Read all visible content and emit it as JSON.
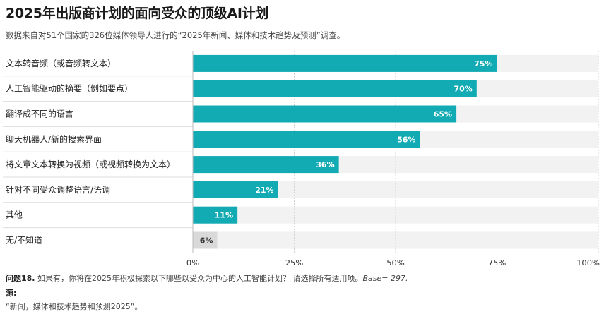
{
  "title": "2025年出版商计划的面向受众的顶级AI计划",
  "subtitle": "数据来自对51个国家的326位媒体领导人进行的“2025年新闻、媒体和技术趋势及预测”调查。",
  "footer": {
    "question_label": "问题18.",
    "question_text": " 如果有，你将在2025年积极探索以下哪些以受众为中心的人工智能计划？ 请选择所有适用项。",
    "base_text": "Base= 297.",
    "source_label": "源:",
    "source_text": "“新闻，媒体和技术趋势和预测2025”。"
  },
  "colors": {
    "bar": "#12abb4",
    "bar_light": "#d9d9d9",
    "bg_band": "#f2f2f2",
    "grid": "#d0d0d0"
  },
  "chart_data": {
    "type": "bar",
    "orientation": "horizontal",
    "categories": [
      "文本转音频（或音频转文本）",
      "人工智能驱动的摘要（例如要点）",
      "翻译成不同的语言",
      "聊天机器人/新的搜索界面",
      "将文章文本转换为视频（或视频转换为文本）",
      "针对不同受众调整语言/语调",
      "其他",
      "无/不知道"
    ],
    "values": [
      75,
      70,
      65,
      56,
      36,
      21,
      11,
      6
    ],
    "value_labels": [
      "75%",
      "70%",
      "65%",
      "56%",
      "36%",
      "21%",
      "11%",
      "6%"
    ],
    "xlim": [
      0,
      100
    ],
    "ticks": [
      0,
      25,
      50,
      75,
      100
    ],
    "tick_labels": [
      "0%",
      "25%",
      "50%",
      "75%",
      "100%"
    ],
    "grid": true
  }
}
